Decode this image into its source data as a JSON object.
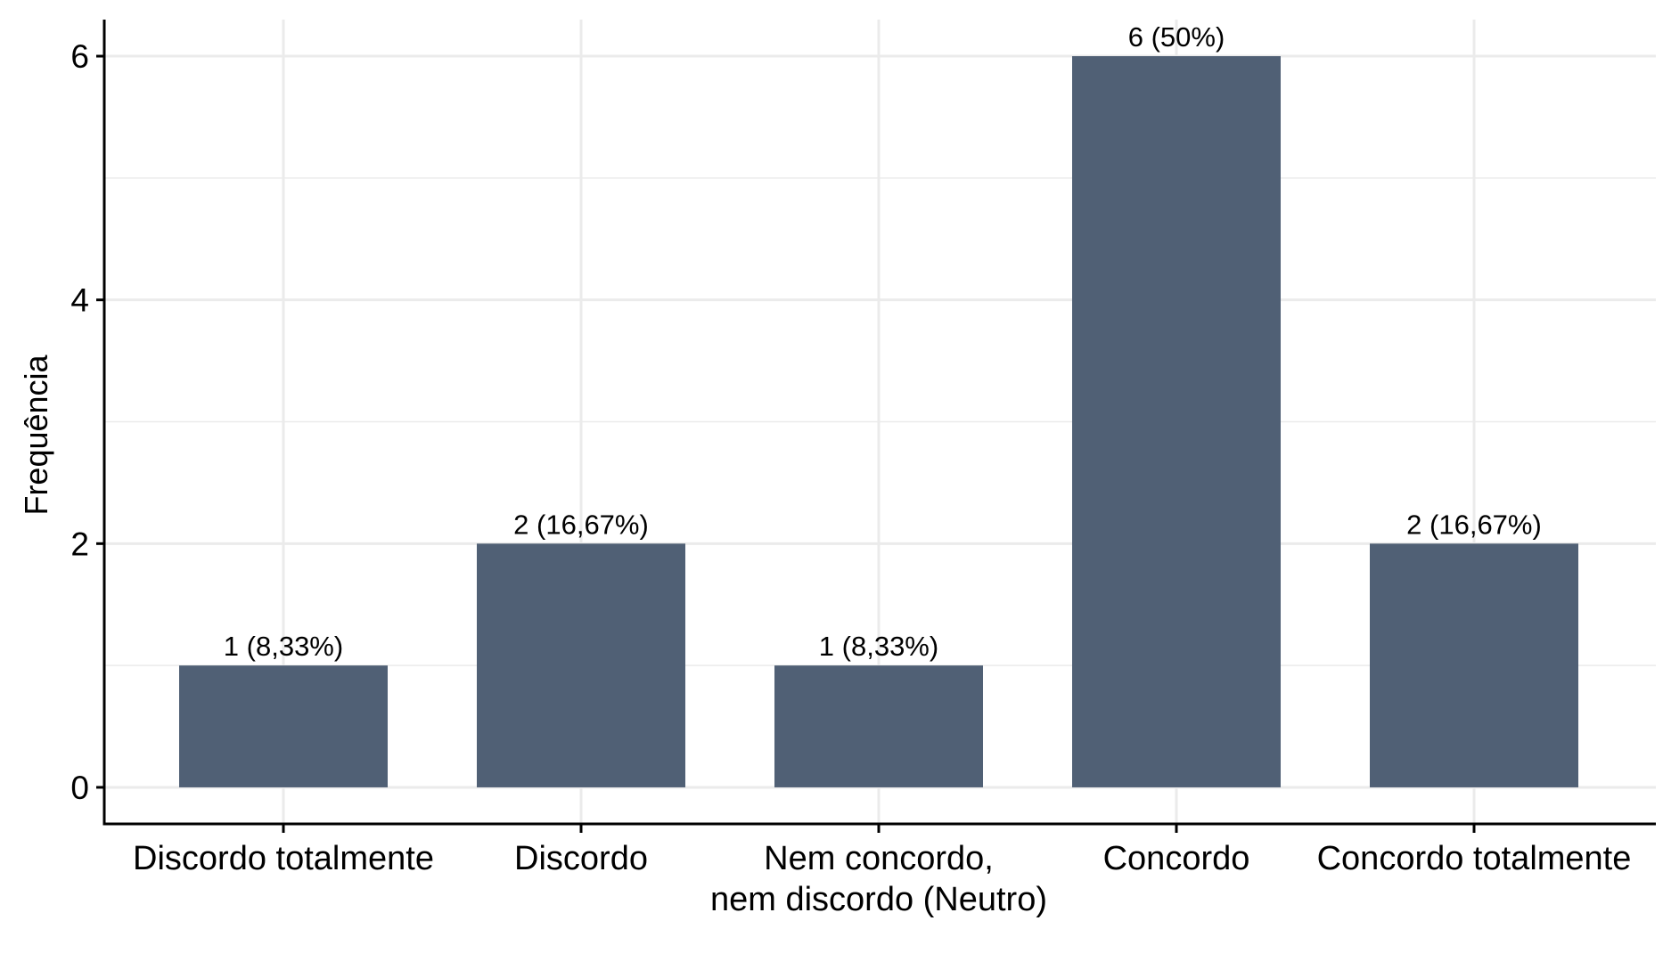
{
  "chart_data": {
    "type": "bar",
    "title": "",
    "xlabel": "",
    "ylabel": "Frequência",
    "categories": [
      [
        "Discordo totalmente"
      ],
      [
        "Discordo"
      ],
      [
        "Nem concordo,",
        "nem discordo (Neutro)"
      ],
      [
        "Concordo"
      ],
      [
        "Concordo totalmente"
      ]
    ],
    "values": [
      1,
      2,
      1,
      6,
      2
    ],
    "data_labels": [
      "1 (8,33%)",
      "2 (16,67%)",
      "1 (8,33%)",
      "6 (50%)",
      "2 (16,67%)"
    ],
    "yticks": [
      0,
      2,
      4,
      6
    ],
    "ylim": [
      -0.3,
      6.3
    ],
    "grid": true,
    "bar_color": "#506075",
    "grid_color": "#ebebeb",
    "legend": "none"
  }
}
